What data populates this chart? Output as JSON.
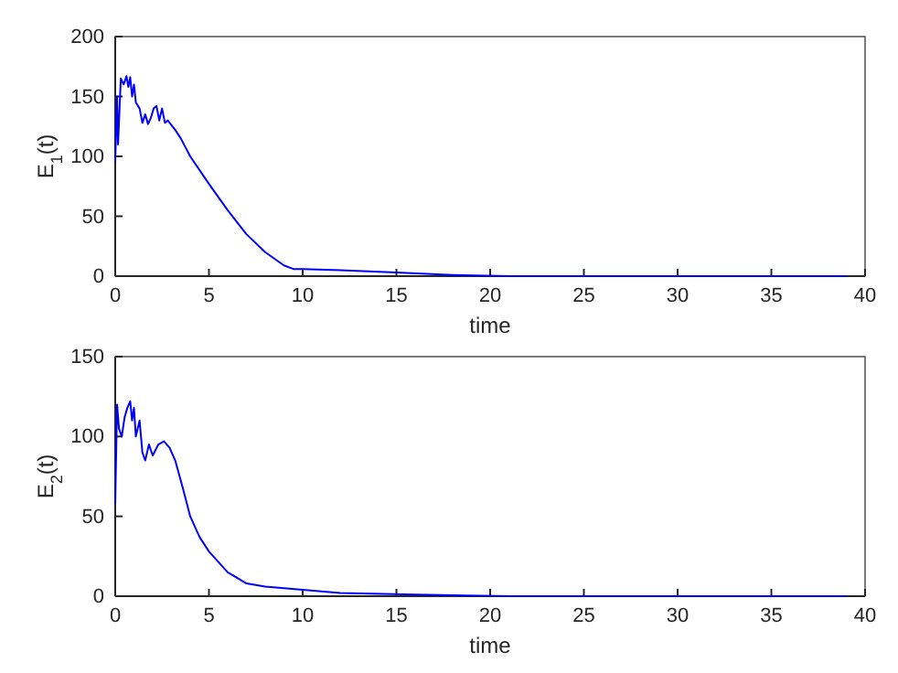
{
  "chart_data": [
    {
      "type": "line",
      "xlabel": "time",
      "ylabel": "E$_{1}$(t)",
      "xlim": [
        0,
        40
      ],
      "xticks": [
        0,
        5,
        10,
        15,
        20,
        25,
        30,
        35,
        40
      ],
      "ylim": [
        0,
        200
      ],
      "yticks": [
        0,
        50,
        100,
        150,
        200
      ],
      "series": [
        {
          "color": "#0000ff",
          "x": [
            0,
            0.1,
            0.15,
            0.3,
            0.45,
            0.6,
            0.7,
            0.8,
            0.9,
            1,
            1.1,
            1.3,
            1.45,
            1.6,
            1.75,
            1.9,
            2.05,
            2.2,
            2.35,
            2.5,
            2.65,
            2.8,
            3.2,
            3.5,
            4,
            5,
            6,
            7,
            8,
            9,
            9.5,
            10,
            12,
            15,
            18,
            21,
            27,
            33,
            39
          ],
          "values": [
            95,
            150,
            110,
            165,
            160,
            167,
            158,
            166,
            150,
            160,
            145,
            140,
            128,
            135,
            127,
            132,
            140,
            142,
            130,
            140,
            128,
            130,
            122,
            115,
            100,
            77,
            55,
            35,
            20,
            9,
            6,
            6,
            5,
            3,
            1,
            0,
            0,
            0,
            0
          ]
        }
      ]
    },
    {
      "type": "line",
      "xlabel": "time",
      "ylabel": "E$_{2}$(t)",
      "xlim": [
        0,
        40
      ],
      "xticks": [
        0,
        5,
        10,
        15,
        20,
        25,
        30,
        35,
        40
      ],
      "ylim": [
        0,
        150
      ],
      "yticks": [
        0,
        50,
        100,
        150
      ],
      "series": [
        {
          "color": "#0000ff",
          "x": [
            0,
            0.1,
            0.2,
            0.35,
            0.5,
            0.65,
            0.8,
            0.9,
            1,
            1.1,
            1.3,
            1.45,
            1.6,
            1.8,
            2,
            2.3,
            2.6,
            2.9,
            3.2,
            3.6,
            4,
            4.5,
            5,
            6,
            7,
            8,
            9,
            10,
            12,
            16,
            21,
            27,
            39
          ],
          "values": [
            58,
            120,
            105,
            100,
            112,
            118,
            122,
            110,
            118,
            100,
            110,
            90,
            85,
            95,
            88,
            95,
            97,
            93,
            85,
            68,
            50,
            37,
            28,
            15,
            8,
            6,
            5,
            4,
            2,
            1,
            0,
            0,
            0
          ]
        }
      ]
    }
  ]
}
